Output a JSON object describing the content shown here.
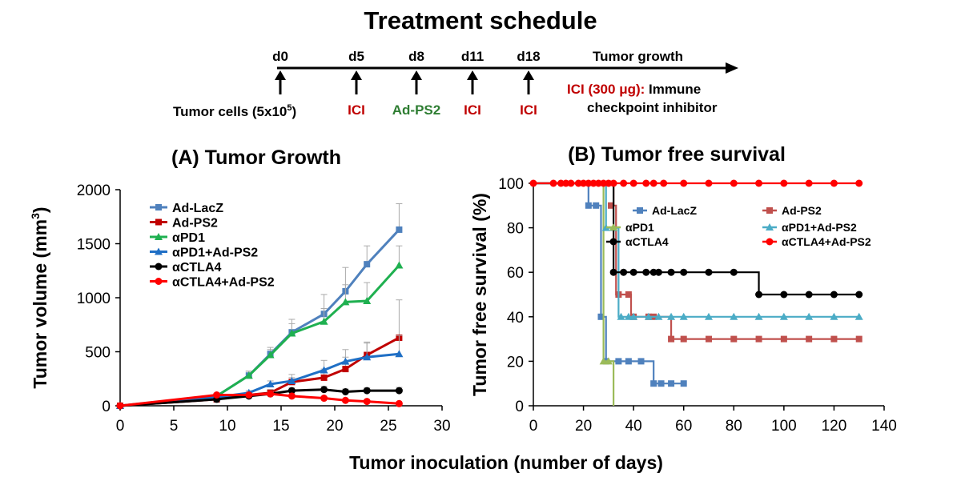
{
  "schedule": {
    "title": "Treatment schedule",
    "days": [
      "d0",
      "d5",
      "d8",
      "d11",
      "d18"
    ],
    "day_labels": [
      "Tumor cells (5x10",
      "ICI",
      "Ad-PS2",
      "ICI",
      "ICI"
    ],
    "tumor_cells_superscript": "5",
    "tumor_cells_suffix": ")",
    "growth_label": "Tumor growth",
    "ici_note": "ICI (300 μg):",
    "ici_note_rest_1": "Immune",
    "ici_note_rest_2": "checkpoint inhibitor"
  },
  "shared_xlabel": "Tumor inoculation (number of days)",
  "colors": {
    "Ad-LacZ": "#4f81bd",
    "Ad-PS2": "#c0504d",
    "αPD1": "#9bbb59",
    "αPD1+Ad-PS2": "#4bacc6",
    "αCTLA4": "#000000",
    "αCTLA4+Ad-PS2": "#ff0000",
    "growth_Ad-PS2": "#c00000",
    "growth_αPD1": "#1fb050",
    "growth_αPD1+Ad-PS2": "#1f6fc5",
    "red_text": "#c00000",
    "green_text": "#2e7d32"
  },
  "chart_data": [
    {
      "type": "line",
      "title": "(A) Tumor Growth",
      "ylabel": "Tumor volume (mm",
      "ylabel_superscript": "3",
      "ylabel_suffix": ")",
      "xlim": [
        0,
        30
      ],
      "ylim": [
        0,
        2000
      ],
      "xticks": [
        0,
        5,
        10,
        15,
        20,
        25,
        30
      ],
      "yticks": [
        0,
        500,
        1000,
        1500,
        2000
      ],
      "grid": false,
      "legend": "top-left",
      "series": [
        {
          "name": "Ad-LacZ",
          "x": [
            0,
            9,
            12,
            14,
            16,
            19,
            21,
            23,
            26
          ],
          "y": [
            0,
            80,
            120,
            130,
            230,
            360,
            410,
            440,
            470
          ],
          "err": [
            0,
            0,
            0,
            0,
            0,
            0,
            0,
            0,
            0
          ],
          "y2": [
            0,
            90,
            280,
            480,
            680,
            850,
            1060,
            1310,
            1630
          ],
          "err2": [
            0,
            20,
            40,
            60,
            120,
            180,
            220,
            170,
            240
          ]
        },
        {
          "name": "Ad-PS2",
          "x": [
            0,
            9,
            12,
            14,
            16,
            19,
            21,
            23,
            26
          ],
          "y": [
            0,
            60,
            100,
            120,
            220,
            260,
            340,
            470,
            630
          ],
          "err": [
            0,
            10,
            20,
            30,
            40,
            80,
            110,
            120,
            350
          ]
        },
        {
          "name": "αPD1",
          "x": [
            0,
            9,
            12,
            14,
            16,
            19,
            21,
            23,
            26
          ],
          "y": [
            0,
            90,
            280,
            470,
            670,
            780,
            960,
            970,
            1300
          ],
          "err": [
            0,
            20,
            40,
            50,
            90,
            120,
            160,
            170,
            180
          ]
        },
        {
          "name": "αPD1+Ad-PS2",
          "x": [
            0,
            9,
            12,
            14,
            16,
            19,
            21,
            23,
            26
          ],
          "y": [
            0,
            80,
            120,
            200,
            230,
            330,
            410,
            450,
            480
          ],
          "err": [
            0,
            10,
            20,
            30,
            60,
            90,
            110,
            130,
            170
          ]
        },
        {
          "name": "αCTLA4",
          "x": [
            0,
            9,
            12,
            14,
            16,
            19,
            21,
            23,
            26
          ],
          "y": [
            0,
            60,
            90,
            110,
            140,
            150,
            130,
            140,
            140
          ],
          "err": [
            0,
            10,
            15,
            20,
            25,
            30,
            25,
            25,
            30
          ]
        },
        {
          "name": "αCTLA4+Ad-PS2",
          "x": [
            0,
            9,
            12,
            14,
            16,
            19,
            21,
            23,
            26
          ],
          "y": [
            0,
            100,
            100,
            110,
            90,
            70,
            50,
            40,
            20
          ],
          "err": [
            0,
            15,
            15,
            15,
            15,
            15,
            10,
            10,
            5
          ]
        }
      ]
    },
    {
      "type": "line",
      "step": true,
      "title": "(B) Tumor free survival",
      "ylabel": "Tumor free survival (%)",
      "xlim": [
        0,
        140
      ],
      "ylim": [
        0,
        100
      ],
      "xticks": [
        0,
        20,
        40,
        60,
        80,
        100,
        120,
        140
      ],
      "yticks": [
        0,
        20,
        40,
        60,
        80,
        100
      ],
      "grid": false,
      "legend": "top-right",
      "series": [
        {
          "name": "Ad-LacZ",
          "steps": [
            [
              0,
              100
            ],
            [
              22,
              90
            ],
            [
              27,
              40
            ],
            [
              29,
              20
            ],
            [
              48,
              10
            ],
            [
              60,
              10
            ]
          ],
          "markers": [
            [
              22,
              90
            ],
            [
              25,
              90
            ],
            [
              27,
              40
            ],
            [
              29,
              20
            ],
            [
              34,
              20
            ],
            [
              38,
              20
            ],
            [
              43,
              20
            ],
            [
              48,
              10
            ],
            [
              51,
              10
            ],
            [
              55,
              10
            ],
            [
              60,
              10
            ]
          ]
        },
        {
          "name": "Ad-PS2",
          "steps": [
            [
              0,
              100
            ],
            [
              32,
              90
            ],
            [
              33,
              50
            ],
            [
              39,
              40
            ],
            [
              55,
              30
            ],
            [
              130,
              30
            ]
          ],
          "markers": [
            [
              31,
              90
            ],
            [
              34,
              50
            ],
            [
              38,
              50
            ],
            [
              40,
              40
            ],
            [
              46,
              40
            ],
            [
              48,
              40
            ],
            [
              55,
              30
            ],
            [
              60,
              30
            ],
            [
              70,
              30
            ],
            [
              80,
              30
            ],
            [
              90,
              30
            ],
            [
              100,
              30
            ],
            [
              110,
              30
            ],
            [
              120,
              30
            ],
            [
              130,
              30
            ]
          ]
        },
        {
          "name": "αPD1",
          "steps": [
            [
              0,
              100
            ],
            [
              28,
              20
            ],
            [
              32,
              0
            ]
          ],
          "markers": [
            [
              28,
              20
            ],
            [
              30,
              20
            ]
          ]
        },
        {
          "name": "αPD1+Ad-PS2",
          "steps": [
            [
              0,
              100
            ],
            [
              29,
              80
            ],
            [
              34,
              40
            ],
            [
              130,
              40
            ]
          ],
          "markers": [
            [
              29,
              80
            ],
            [
              32,
              80
            ],
            [
              35,
              40
            ],
            [
              38,
              40
            ],
            [
              40,
              40
            ],
            [
              46,
              40
            ],
            [
              50,
              40
            ],
            [
              55,
              40
            ],
            [
              60,
              40
            ],
            [
              70,
              40
            ],
            [
              80,
              40
            ],
            [
              90,
              40
            ],
            [
              100,
              40
            ],
            [
              110,
              40
            ],
            [
              120,
              40
            ],
            [
              130,
              40
            ]
          ]
        },
        {
          "name": "αCTLA4",
          "steps": [
            [
              0,
              100
            ],
            [
              32,
              60
            ],
            [
              90,
              50
            ],
            [
              130,
              50
            ]
          ],
          "markers": [
            [
              32,
              60
            ],
            [
              36,
              60
            ],
            [
              40,
              60
            ],
            [
              45,
              60
            ],
            [
              48,
              60
            ],
            [
              50,
              60
            ],
            [
              55,
              60
            ],
            [
              60,
              60
            ],
            [
              70,
              60
            ],
            [
              80,
              60
            ],
            [
              90,
              50
            ],
            [
              100,
              50
            ],
            [
              110,
              50
            ],
            [
              120,
              50
            ],
            [
              130,
              50
            ]
          ]
        },
        {
          "name": "αCTLA4+Ad-PS2",
          "steps": [
            [
              0,
              100
            ],
            [
              130,
              100
            ]
          ],
          "markers": [
            [
              0,
              100
            ],
            [
              8,
              100
            ],
            [
              11,
              100
            ],
            [
              13,
              100
            ],
            [
              15,
              100
            ],
            [
              18,
              100
            ],
            [
              20,
              100
            ],
            [
              22,
              100
            ],
            [
              24,
              100
            ],
            [
              26,
              100
            ],
            [
              28,
              100
            ],
            [
              30,
              100
            ],
            [
              32,
              100
            ],
            [
              36,
              100
            ],
            [
              40,
              100
            ],
            [
              45,
              100
            ],
            [
              48,
              100
            ],
            [
              52,
              100
            ],
            [
              60,
              100
            ],
            [
              70,
              100
            ],
            [
              80,
              100
            ],
            [
              90,
              100
            ],
            [
              100,
              100
            ],
            [
              110,
              100
            ],
            [
              120,
              100
            ],
            [
              130,
              100
            ]
          ]
        }
      ]
    }
  ]
}
